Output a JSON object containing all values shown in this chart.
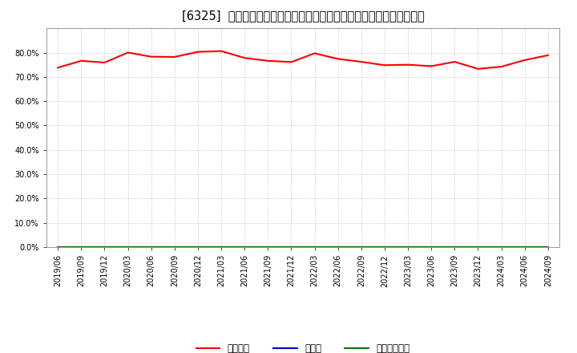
{
  "title": "[6325]  自己資本、のれん、繰延税金資産の総資産に対する比率の推移",
  "x_labels": [
    "2019/06",
    "2019/09",
    "2019/12",
    "2020/03",
    "2020/06",
    "2020/09",
    "2020/12",
    "2021/03",
    "2021/06",
    "2021/09",
    "2021/12",
    "2022/03",
    "2022/06",
    "2022/09",
    "2022/12",
    "2023/03",
    "2023/06",
    "2023/09",
    "2023/12",
    "2024/03",
    "2024/06",
    "2024/09"
  ],
  "jikoshihon": [
    0.738,
    0.766,
    0.759,
    0.8,
    0.783,
    0.782,
    0.803,
    0.806,
    0.778,
    0.766,
    0.761,
    0.797,
    0.774,
    0.762,
    0.748,
    0.75,
    0.744,
    0.762,
    0.733,
    0.742,
    0.769,
    0.789
  ],
  "noren": [
    0.0,
    0.0,
    0.0,
    0.0,
    0.0,
    0.0,
    0.0,
    0.0,
    0.0,
    0.0,
    0.0,
    0.0,
    0.0,
    0.0,
    0.0,
    0.0,
    0.0,
    0.0,
    0.0,
    0.0,
    0.0,
    0.0
  ],
  "kurinobezeikin": [
    0.0,
    0.0,
    0.0,
    0.0,
    0.0,
    0.0,
    0.0,
    0.0,
    0.0,
    0.0,
    0.0,
    0.0,
    0.0,
    0.0,
    0.0,
    0.0,
    0.0,
    0.0,
    0.0,
    0.0,
    0.0,
    0.0
  ],
  "jikoshihon_color": "#ff0000",
  "noren_color": "#0000cc",
  "kurinobezeikin_color": "#007700",
  "background_color": "#ffffff",
  "grid_color": "#bbbbbb",
  "ylim": [
    0.0,
    0.9
  ],
  "yticks": [
    0.0,
    0.1,
    0.2,
    0.3,
    0.4,
    0.5,
    0.6,
    0.7,
    0.8
  ],
  "legend_labels": [
    "自己資本",
    "のれん",
    "繰延税金資産"
  ],
  "title_fontsize": 10.5,
  "tick_fontsize": 7,
  "legend_fontsize": 8.5
}
